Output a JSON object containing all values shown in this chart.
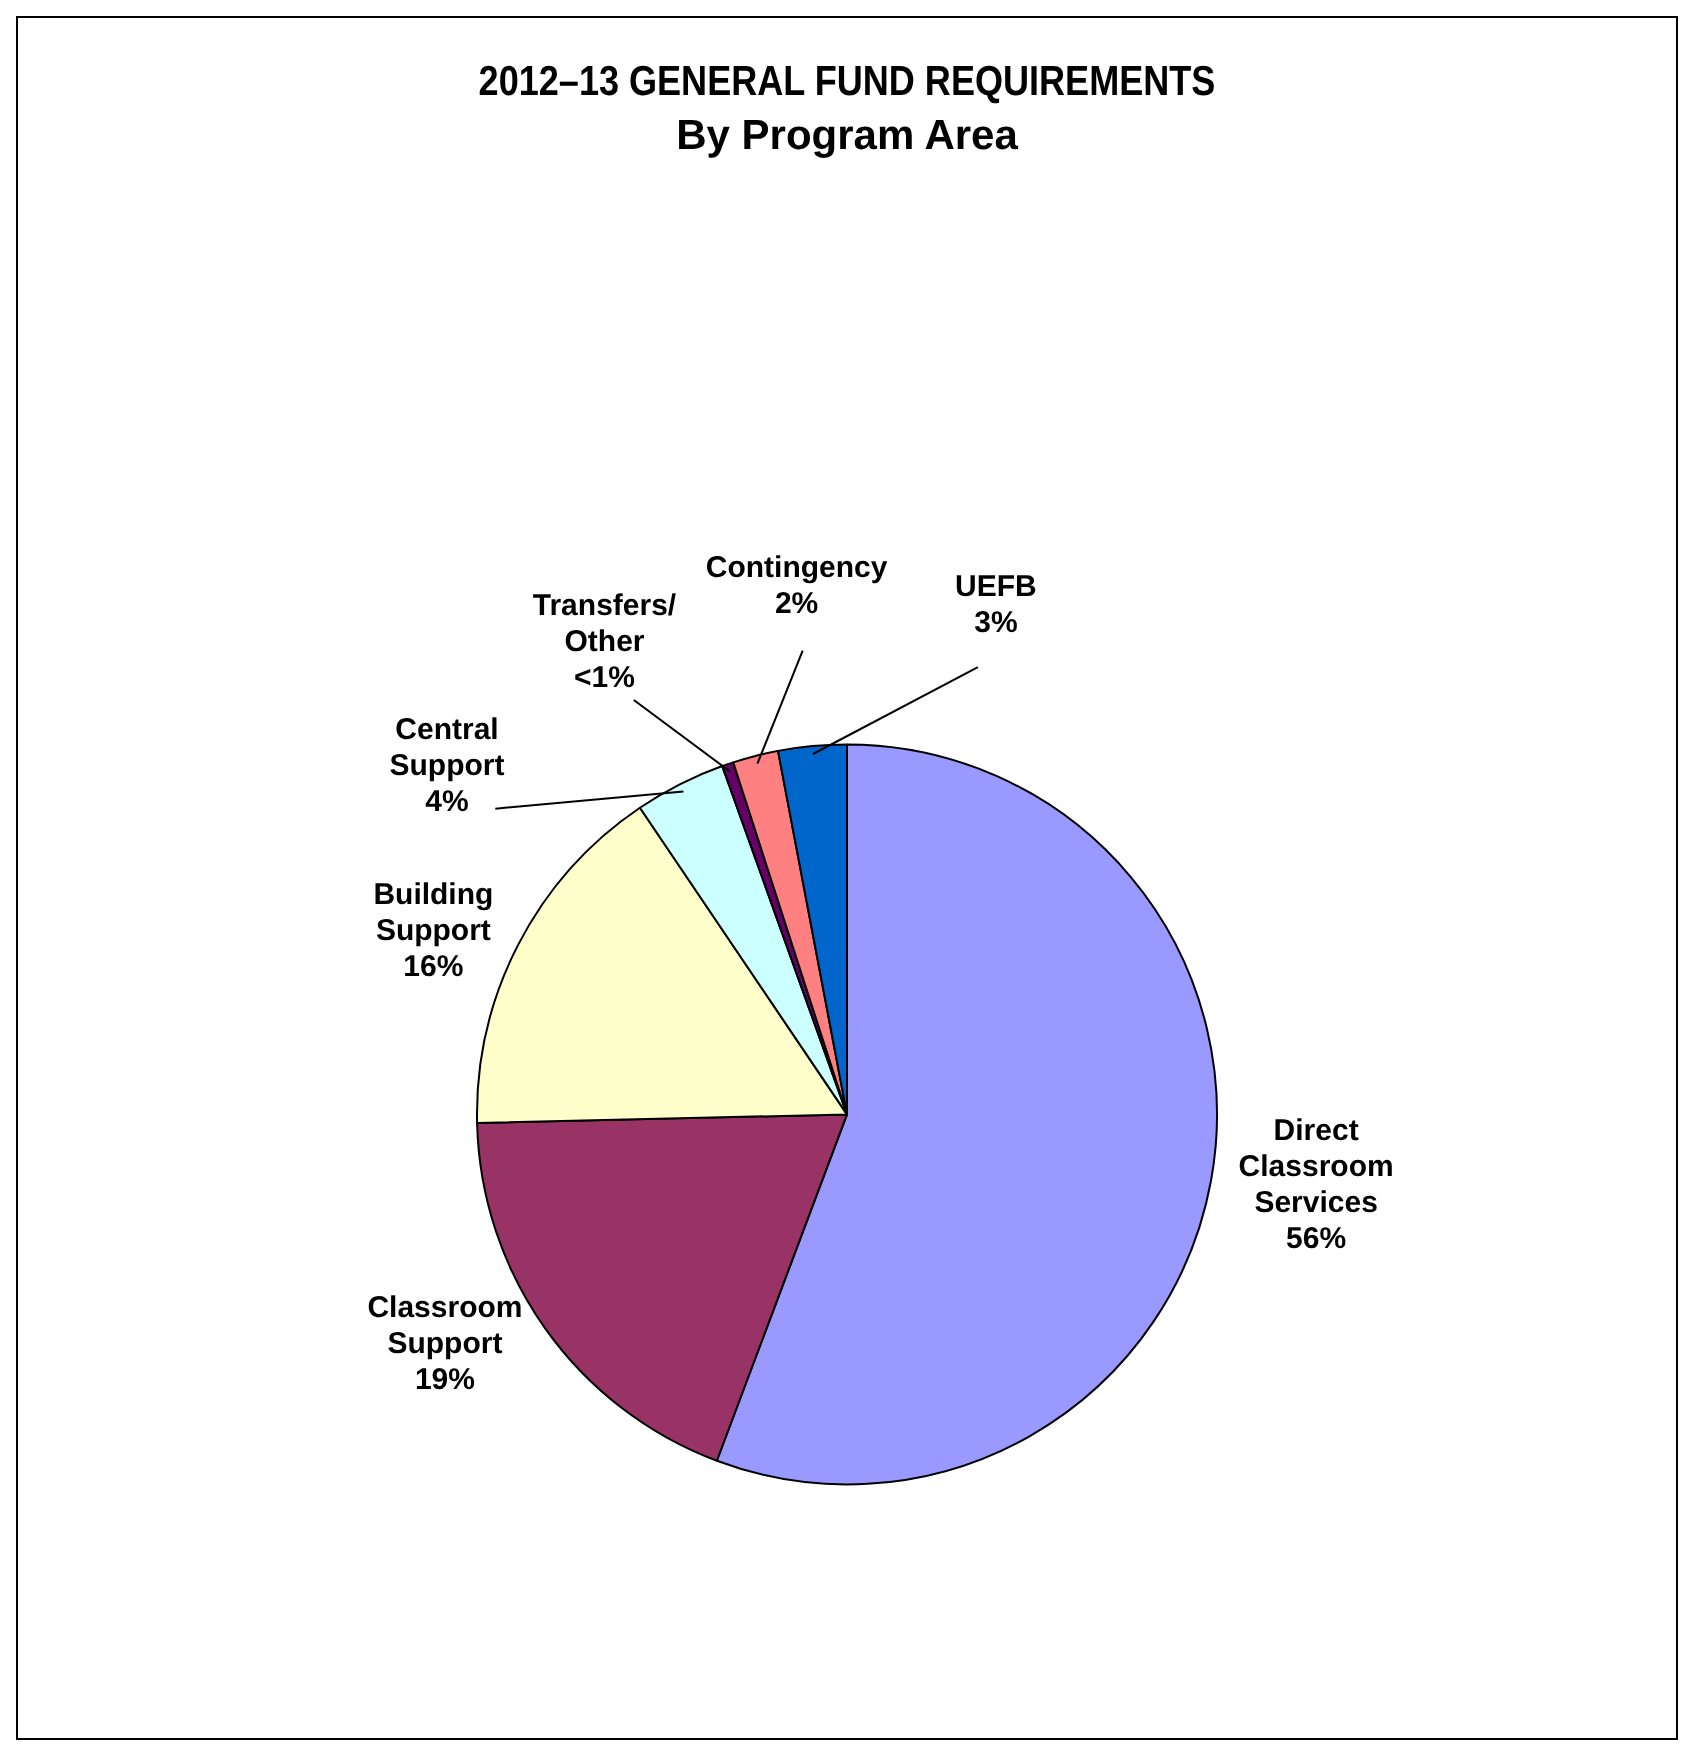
{
  "chart_data": {
    "type": "pie",
    "title": "2012–13 GENERAL FUND REQUIREMENTS",
    "subtitle": "By Program Area",
    "categories": [
      "Direct Classroom Services",
      "Classroom Support",
      "Building Support",
      "Central Support",
      "Transfers/ Other",
      "Contingency",
      "UEFB"
    ],
    "values": [
      56,
      19,
      16,
      4,
      0.5,
      2,
      3
    ],
    "value_labels": [
      "56%",
      "19%",
      "16%",
      "4%",
      "<1%",
      "2%",
      "3%"
    ],
    "colors": [
      "#9999ff",
      "#993366",
      "#ffffcc",
      "#ccffff",
      "#660066",
      "#ff8080",
      "#0066cc"
    ],
    "legend": false
  }
}
